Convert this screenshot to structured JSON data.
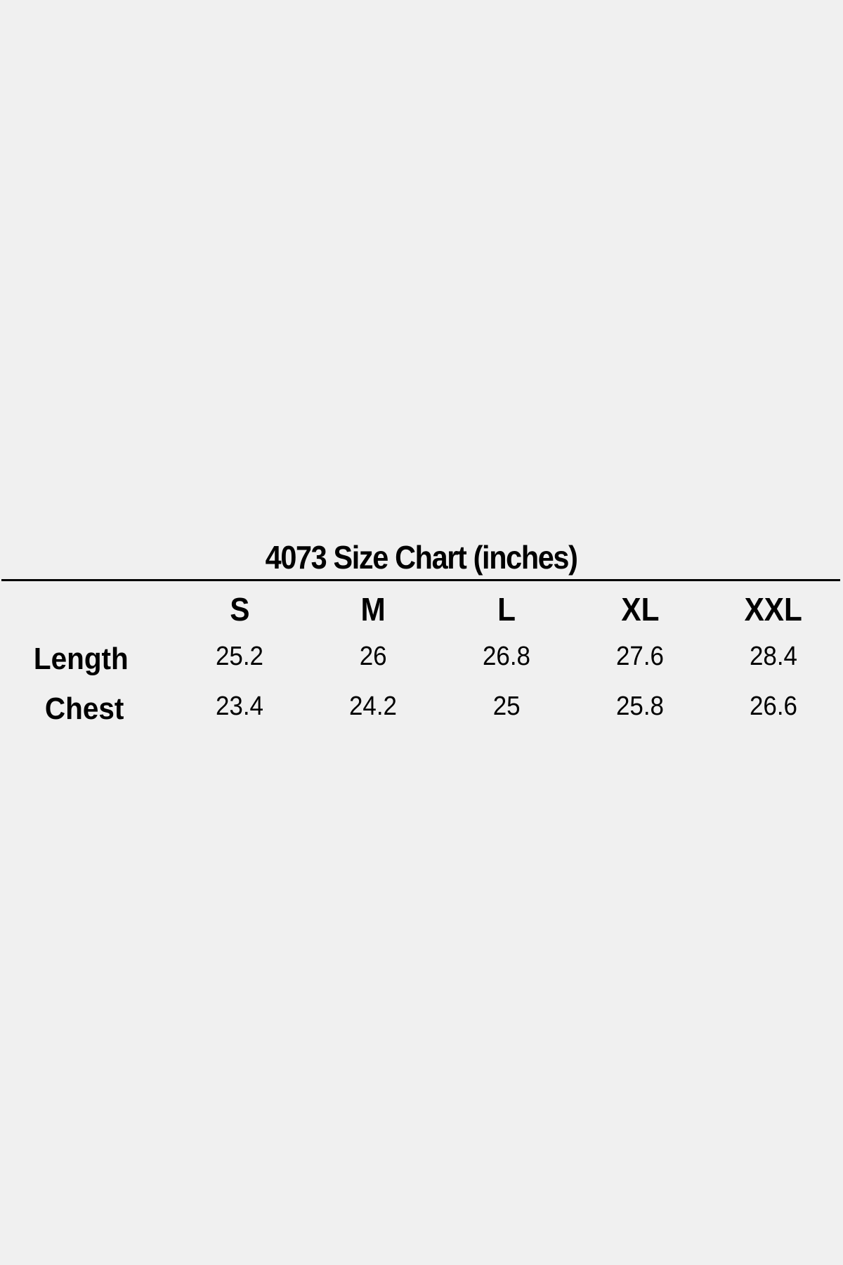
{
  "title": "4073 Size Chart (inches)",
  "table": {
    "columns": [
      "S",
      "M",
      "L",
      "XL",
      "XXL"
    ],
    "rows": [
      {
        "label": "Length",
        "values": [
          "25.2",
          "26",
          "26.8",
          "27.6",
          "28.4"
        ]
      },
      {
        "label": "Chest",
        "values": [
          "23.4",
          "24.2",
          "25",
          "25.8",
          "26.6"
        ]
      }
    ]
  },
  "colors": {
    "background": "#f0f0f0",
    "text": "#000000"
  }
}
